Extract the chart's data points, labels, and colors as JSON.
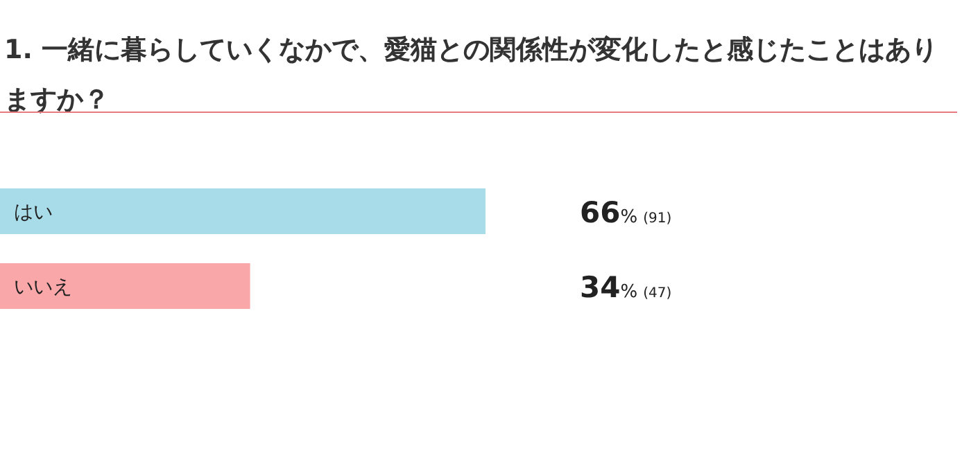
{
  "chart_data": {
    "type": "bar",
    "orientation": "horizontal",
    "title": "1. 一緒に暮らしていくなかで、愛猫との関係性が変化したと感じたことはありますか？",
    "categories": [
      "はい",
      "いいえ"
    ],
    "values": [
      66,
      34
    ],
    "colors": [
      "#a8dce9",
      "#f9a7a9"
    ],
    "value_labels": [
      "66% (91)",
      "34% (47)"
    ]
  }
}
